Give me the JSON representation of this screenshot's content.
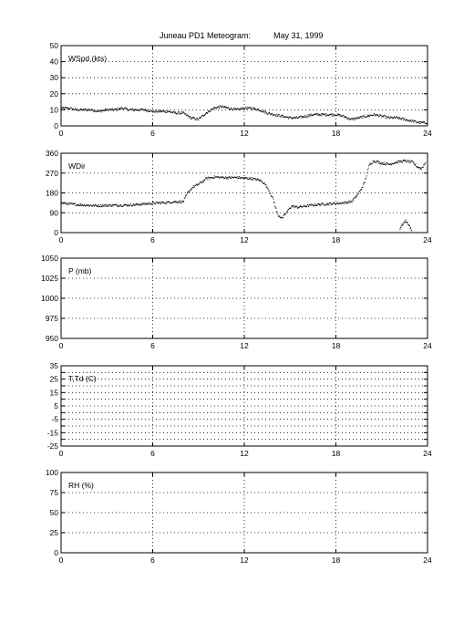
{
  "figure": {
    "title_station": "Juneau PD1 Meteogram:",
    "title_date": "May 31, 1999"
  },
  "chart_data": [
    {
      "type": "scatter",
      "panel_label": "WSpd (kts)",
      "xlim": [
        0,
        24
      ],
      "xticks": [
        "0",
        "6",
        "12",
        "18",
        "24"
      ],
      "ylim": [
        0,
        50
      ],
      "yticks": [
        "0",
        "10",
        "20",
        "30",
        "40",
        "50"
      ],
      "grid": true,
      "marker_color": "#000000",
      "series": [
        {
          "x": [
            0,
            0.5,
            1,
            1.5,
            2,
            2.5,
            3,
            3.5,
            4,
            4.5,
            5,
            5.5,
            6,
            6.5,
            7,
            7.5,
            8,
            8.5,
            9,
            9.5,
            10,
            10.5,
            11,
            11.5,
            12,
            12.5,
            13,
            13.5,
            14,
            14.5,
            15,
            15.5,
            16,
            16.5,
            17,
            17.5,
            18,
            18.5,
            19,
            19.5,
            20,
            20.5,
            21,
            21.5,
            22,
            22.5,
            23,
            23.5,
            24
          ],
          "values": [
            11,
            11,
            10,
            10,
            10,
            9,
            10,
            10,
            11,
            10,
            10,
            10,
            9,
            9,
            9,
            8,
            8,
            5,
            4,
            8,
            11,
            12,
            11,
            10,
            11,
            11,
            10,
            8,
            7,
            6,
            5,
            5,
            6,
            7,
            7,
            7,
            7,
            6,
            4,
            5,
            6,
            7,
            6,
            5,
            5,
            4,
            3,
            2,
            2
          ]
        }
      ]
    },
    {
      "type": "scatter",
      "panel_label": "WDir",
      "xlim": [
        0,
        24
      ],
      "xticks": [
        "0",
        "6",
        "12",
        "18",
        "24"
      ],
      "ylim": [
        0,
        360
      ],
      "yticks": [
        "0",
        "90",
        "180",
        "270",
        "360"
      ],
      "grid": true,
      "marker_color": "#000000",
      "series": [
        {
          "x": [
            0,
            0.5,
            1,
            1.5,
            2,
            2.5,
            3,
            3.5,
            4,
            4.5,
            5,
            5.5,
            6,
            6.5,
            7,
            7.5,
            8,
            8.3,
            8.6,
            8.9,
            9.2,
            9.5,
            10,
            10.5,
            11,
            11.5,
            12,
            12.5,
            13,
            13.3,
            13.6,
            13.9,
            14.2,
            14.5,
            14.8,
            15.1,
            15.5,
            16,
            16.5,
            17,
            17.5,
            18,
            18.5,
            19,
            19.3,
            19.6,
            19.9,
            20.2,
            20.5,
            21,
            21.5,
            22,
            22.5,
            23,
            23.3,
            23.6,
            23.9
          ],
          "values": [
            135,
            130,
            127,
            125,
            123,
            122,
            123,
            124,
            124,
            125,
            127,
            130,
            133,
            135,
            137,
            140,
            140,
            180,
            205,
            215,
            228,
            245,
            252,
            250,
            249,
            250,
            247,
            245,
            238,
            225,
            195,
            150,
            80,
            65,
            95,
            120,
            115,
            120,
            125,
            128,
            130,
            132,
            135,
            140,
            160,
            190,
            230,
            310,
            325,
            315,
            310,
            320,
            325,
            320,
            300,
            290,
            320
          ]
        },
        {
          "x": [
            22.2,
            22.4,
            22.6,
            22.8,
            23.0
          ],
          "values": [
            20,
            40,
            55,
            30,
            10
          ]
        }
      ]
    },
    {
      "type": "scatter",
      "panel_label": "P (mb)",
      "xlim": [
        0,
        24
      ],
      "xticks": [
        "0",
        "6",
        "12",
        "18",
        "24"
      ],
      "ylim": [
        950,
        1050
      ],
      "yticks": [
        "950",
        "975",
        "1000",
        "1025",
        "1050"
      ],
      "grid": true,
      "series": []
    },
    {
      "type": "scatter",
      "panel_label": "T,Td (C)",
      "xlim": [
        0,
        24
      ],
      "xticks": [
        "0",
        "6",
        "12",
        "18",
        "24"
      ],
      "ylim": [
        -25,
        35
      ],
      "yticks": [
        "-25",
        "-15",
        "-5",
        "5",
        "15",
        "25",
        "35"
      ],
      "minor_yticks": [
        "-20",
        "-10",
        "0",
        "10",
        "20",
        "30"
      ],
      "grid": true,
      "series": []
    },
    {
      "type": "scatter",
      "panel_label": "RH (%)",
      "xlim": [
        0,
        24
      ],
      "xticks": [
        "0",
        "6",
        "12",
        "18",
        "24"
      ],
      "ylim": [
        0,
        100
      ],
      "yticks": [
        "0",
        "25",
        "50",
        "75",
        "100"
      ],
      "grid": true,
      "series": []
    }
  ]
}
